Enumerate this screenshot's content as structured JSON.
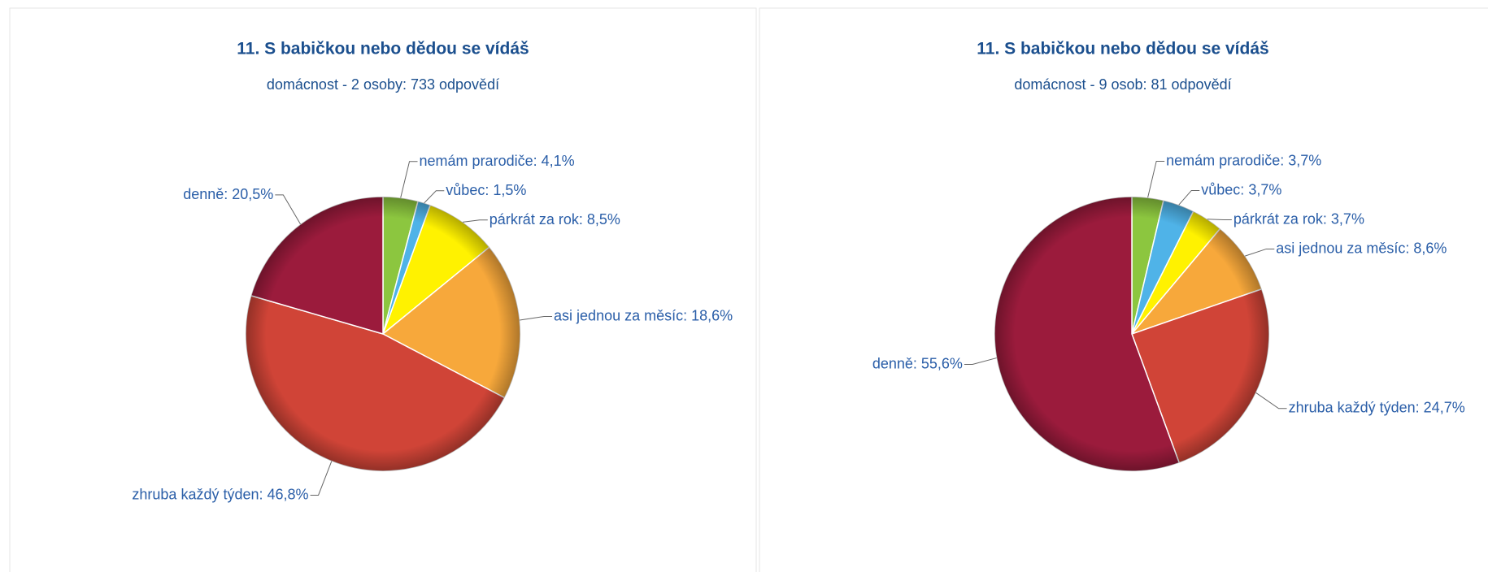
{
  "chart_data": [
    {
      "type": "pie",
      "title": "11. S babičkou nebo dědou se vídáš",
      "subtitle": "domácnost - 2 osoby: 733 odpovědí",
      "label_separator": ":",
      "categories": [
        "nemám prarodiče",
        "vůbec",
        "párkrát za rok",
        "asi jednou za měsíc",
        "zhruba každý týden",
        "denně"
      ],
      "values": [
        4.1,
        1.5,
        8.5,
        18.6,
        46.8,
        20.5
      ],
      "value_labels": [
        "4,1%",
        "1,5%",
        "8,5%",
        "18,6%",
        "46,8%",
        "20,5%"
      ],
      "colors": [
        "#8cc63f",
        "#4fb3e8",
        "#fff200",
        "#f7a83b",
        "#d04437",
        "#9b1b3c"
      ]
    },
    {
      "type": "pie",
      "title": "11. S babičkou nebo dědou se vídáš",
      "subtitle": "domácnost - 9 osob: 81 odpovědí",
      "label_separator": ":",
      "categories": [
        "nemám prarodiče",
        "vůbec",
        "párkrát za rok",
        "asi jednou za měsíc",
        "zhruba každý týden",
        "denně"
      ],
      "values": [
        3.7,
        3.7,
        3.7,
        8.6,
        24.7,
        55.6
      ],
      "value_labels": [
        "3,7%",
        "3,7%",
        "3,7%",
        "8,6%",
        "24,7%",
        "55,6%"
      ],
      "colors": [
        "#8cc63f",
        "#4fb3e8",
        "#fff200",
        "#f7a83b",
        "#d04437",
        "#9b1b3c"
      ]
    }
  ]
}
